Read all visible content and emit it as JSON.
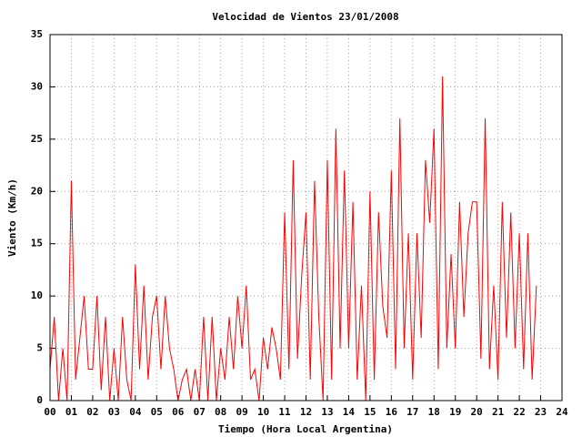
{
  "chart_data": {
    "type": "line",
    "title": "Velocidad de Vientos 23/01/2008",
    "xlabel": "Tiempo (Hora Local Argentina)",
    "ylabel": "Viento (Km/h)",
    "x": [
      0,
      0.2,
      0.4,
      0.6,
      0.8,
      1,
      1.2,
      1.4,
      1.6,
      1.8,
      2,
      2.2,
      2.4,
      2.6,
      2.8,
      3,
      3.2,
      3.4,
      3.6,
      3.8,
      4,
      4.2,
      4.4,
      4.6,
      4.8,
      5,
      5.2,
      5.4,
      5.6,
      5.8,
      6,
      6.2,
      6.4,
      6.6,
      6.8,
      7,
      7.2,
      7.4,
      7.6,
      7.8,
      8,
      8.2,
      8.4,
      8.6,
      8.8,
      9,
      9.2,
      9.4,
      9.6,
      9.8,
      10,
      10.2,
      10.4,
      10.6,
      10.8,
      11,
      11.2,
      11.4,
      11.6,
      11.8,
      12,
      12.2,
      12.4,
      12.6,
      12.8,
      13,
      13.2,
      13.4,
      13.6,
      13.8,
      14,
      14.2,
      14.4,
      14.6,
      14.8,
      15,
      15.2,
      15.4,
      15.6,
      15.8,
      16,
      16.2,
      16.4,
      16.6,
      16.8,
      17,
      17.2,
      17.4,
      17.6,
      17.8,
      18,
      18.2,
      18.4,
      18.6,
      18.8,
      19,
      19.2,
      19.4,
      19.6,
      19.8,
      20,
      20.2,
      20.4,
      20.6,
      20.8,
      21,
      21.2,
      21.4,
      21.6,
      21.8,
      22,
      22.2,
      22.4,
      22.6,
      22.8
    ],
    "series": [
      {
        "name": "Viento",
        "color": "#ff0000",
        "values": [
          3,
          8,
          0,
          5,
          0,
          21,
          2,
          6,
          10,
          3,
          3,
          10,
          1,
          8,
          0,
          5,
          0,
          8,
          2,
          0,
          13,
          3,
          11,
          2,
          8,
          10,
          3,
          10,
          5,
          3,
          0,
          2,
          3,
          0,
          3,
          0,
          8,
          0,
          8,
          0,
          5,
          2,
          8,
          3,
          10,
          5,
          11,
          2,
          3,
          0,
          6,
          3,
          7,
          5,
          2,
          18,
          3,
          23,
          4,
          12,
          18,
          2,
          21,
          8,
          0,
          23,
          2,
          26,
          5,
          22,
          5,
          19,
          2,
          11,
          0,
          20,
          2,
          18,
          9,
          6,
          22,
          3,
          27,
          5,
          16,
          2,
          16,
          6,
          23,
          17,
          26,
          3,
          31,
          5,
          14,
          5,
          19,
          8,
          16,
          19,
          19,
          4,
          27,
          3,
          11,
          2,
          19,
          6,
          18,
          5,
          16,
          3,
          16,
          2,
          11
        ]
      }
    ],
    "xlim": [
      0,
      24
    ],
    "xticks": [
      {
        "value": 0,
        "label": "00"
      },
      {
        "value": 1,
        "label": "01"
      },
      {
        "value": 2,
        "label": "02"
      },
      {
        "value": 3,
        "label": "03"
      },
      {
        "value": 4,
        "label": "04"
      },
      {
        "value": 5,
        "label": "05"
      },
      {
        "value": 6,
        "label": "06"
      },
      {
        "value": 7,
        "label": "07"
      },
      {
        "value": 8,
        "label": "08"
      },
      {
        "value": 9,
        "label": "09"
      },
      {
        "value": 10,
        "label": "10"
      },
      {
        "value": 11,
        "label": "11"
      },
      {
        "value": 12,
        "label": "12"
      },
      {
        "value": 13,
        "label": "13"
      },
      {
        "value": 14,
        "label": "14"
      },
      {
        "value": 15,
        "label": "15"
      },
      {
        "value": 16,
        "label": "16"
      },
      {
        "value": 17,
        "label": "17"
      },
      {
        "value": 18,
        "label": "18"
      },
      {
        "value": 19,
        "label": "19"
      },
      {
        "value": 20,
        "label": "20"
      },
      {
        "value": 21,
        "label": "21"
      },
      {
        "value": 22,
        "label": "22"
      },
      {
        "value": 23,
        "label": "23"
      },
      {
        "value": 24,
        "label": "24"
      }
    ],
    "ylim": [
      0,
      35
    ],
    "yticks": [
      0,
      5,
      10,
      15,
      20,
      25,
      30,
      35
    ],
    "grid": true
  }
}
